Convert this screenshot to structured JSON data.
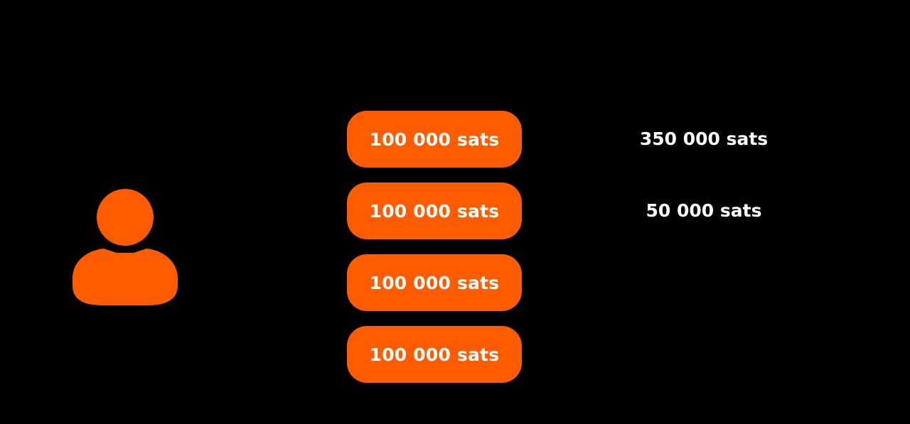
{
  "colors": {
    "background": "#000000",
    "accent": "#FF5C00",
    "text": "#FFFFFF"
  },
  "user": {
    "icon": "user-icon"
  },
  "utxos": [
    {
      "label": "100 000 sats"
    },
    {
      "label": "100 000 sats"
    },
    {
      "label": "100 000 sats"
    },
    {
      "label": "100 000 sats"
    }
  ],
  "amounts": [
    {
      "label": "350 000 sats"
    },
    {
      "label": "50 000 sats"
    }
  ]
}
